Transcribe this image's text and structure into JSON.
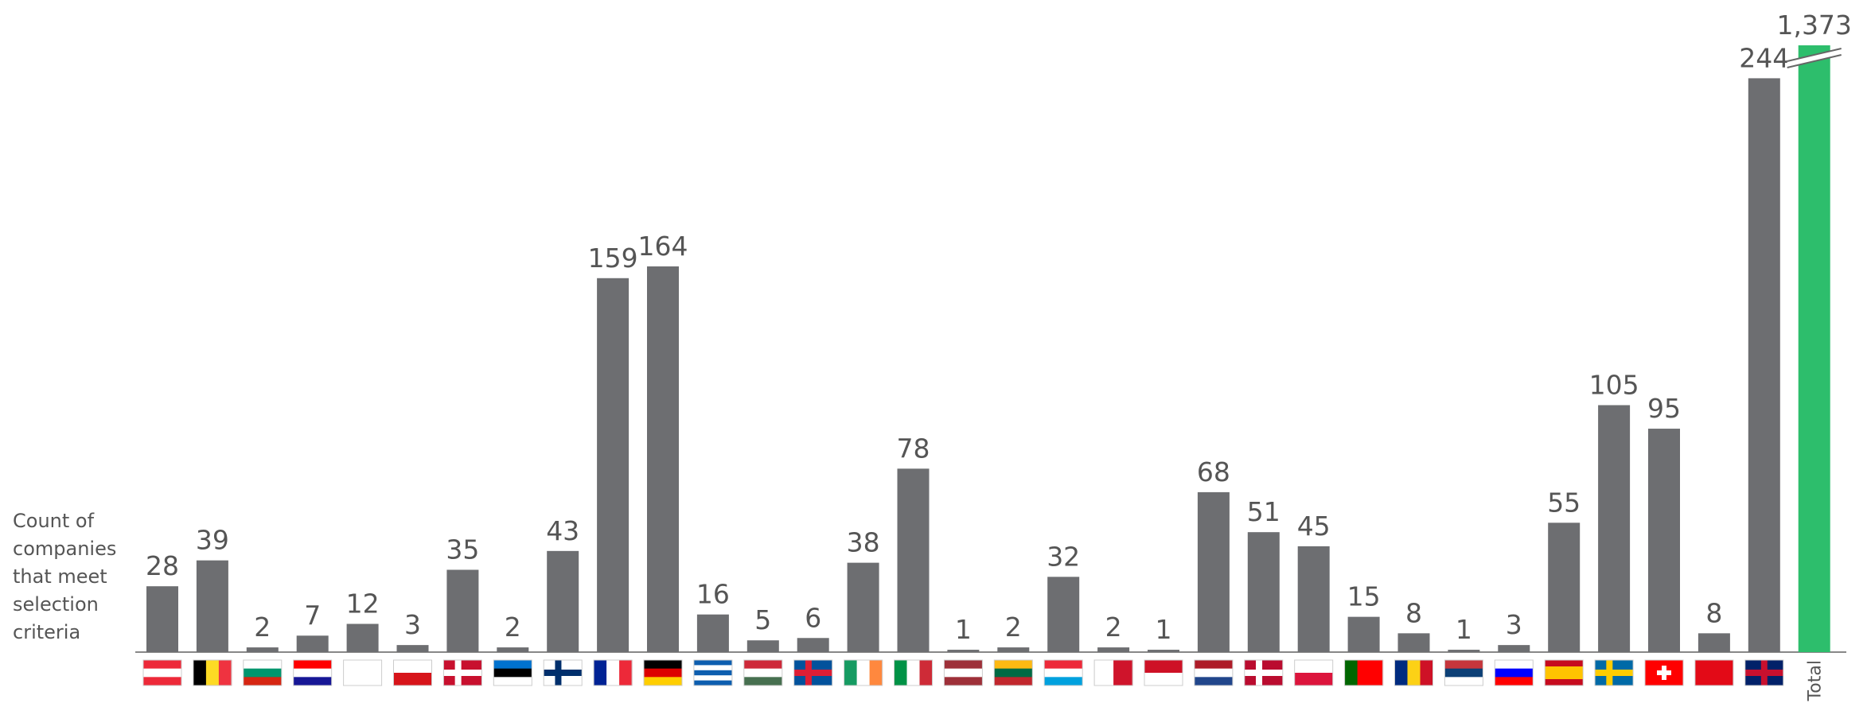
{
  "chart_data": {
    "type": "bar",
    "y_label": "Count of companies that meet selection criteria",
    "categories": [
      null,
      null,
      null,
      null,
      null,
      null,
      null,
      null,
      null,
      null,
      null,
      null,
      null,
      null,
      null,
      null,
      null,
      null,
      null,
      null,
      null,
      null,
      null,
      null,
      null,
      null,
      null,
      null,
      null,
      null,
      null,
      null,
      null,
      "Total"
    ],
    "values": [
      28,
      39,
      2,
      7,
      12,
      3,
      35,
      2,
      43,
      159,
      164,
      16,
      5,
      6,
      38,
      78,
      1,
      2,
      32,
      2,
      1,
      68,
      51,
      45,
      15,
      8,
      1,
      3,
      55,
      105,
      95,
      8,
      244,
      1373
    ],
    "value_labels": [
      "28",
      "39",
      "2",
      "7",
      "12",
      "3",
      "35",
      "2",
      "43",
      "159",
      "164",
      "16",
      "5",
      "6",
      "38",
      "78",
      "1",
      "2",
      "32",
      "2",
      "1",
      "68",
      "51",
      "45",
      "15",
      "8",
      "1",
      "3",
      "55",
      "105",
      "95",
      "8",
      "244",
      "1,373"
    ],
    "colors": [
      "#6d6e71",
      "#2dbe6c"
    ],
    "ylim": [
      0,
      258
    ]
  }
}
